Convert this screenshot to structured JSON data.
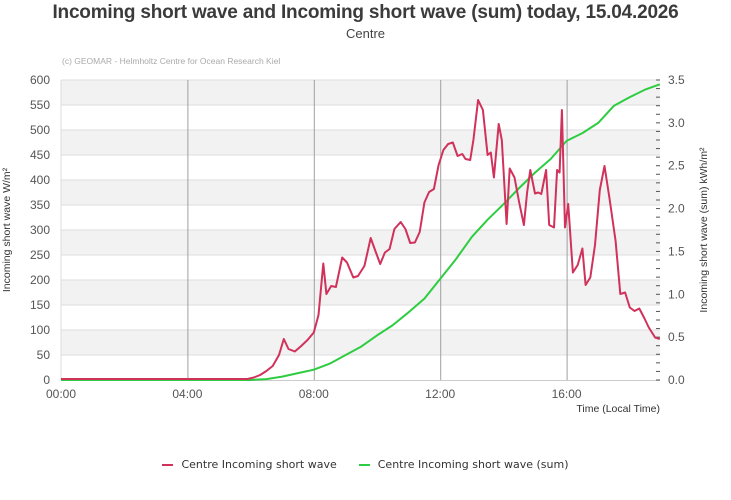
{
  "title": "Incoming short wave and Incoming short wave (sum) today, 15.04.2026",
  "subtitle": "Centre",
  "credit": "(c) GEOMAR - Helmholtz Centre for Ocean Research Kiel",
  "legend": [
    {
      "label": "Centre Incoming short wave",
      "color": "#d0325b"
    },
    {
      "label": "Centre Incoming short wave (sum)",
      "color": "#2ecc40"
    }
  ],
  "chart_data": {
    "type": "line",
    "title": "Incoming short wave and Incoming short wave (sum) today, 15.04.2026",
    "subtitle": "Centre",
    "xlabel": "Time (Local Time)",
    "ylabel": "Incoming short wave W/m²",
    "y2label": "Incoming short wave (sum) kWh/m²",
    "x_ticks": [
      "00:00",
      "04:00",
      "08:00",
      "12:00",
      "16:00"
    ],
    "y_ticks": [
      "0",
      "50",
      "100",
      "150",
      "200",
      "250",
      "300",
      "350",
      "400",
      "450",
      "500",
      "550",
      "600"
    ],
    "y2_ticks": [
      "0.0",
      "0.5",
      "1.0",
      "1.5",
      "2.0",
      "2.5",
      "3.0",
      "3.5"
    ],
    "xlim_hours": [
      0,
      19
    ],
    "ylim": [
      0,
      600
    ],
    "y2lim": [
      0,
      3.5
    ],
    "grid": true,
    "legend_position": "bottom",
    "series": [
      {
        "name": "Centre Incoming short wave",
        "axis": "left",
        "color": "#d0325b",
        "unit": "W/m²",
        "x_hours": [
          0,
          5.9,
          6.1,
          6.3,
          6.5,
          6.7,
          6.9,
          7.05,
          7.2,
          7.4,
          7.6,
          7.8,
          8.0,
          8.15,
          8.3,
          8.4,
          8.55,
          8.7,
          8.9,
          9.05,
          9.25,
          9.4,
          9.6,
          9.8,
          9.95,
          10.1,
          10.25,
          10.4,
          10.55,
          10.75,
          10.9,
          11.05,
          11.2,
          11.35,
          11.5,
          11.65,
          11.8,
          11.95,
          12.1,
          12.25,
          12.4,
          12.55,
          12.7,
          12.8,
          12.95,
          13.05,
          13.2,
          13.35,
          13.5,
          13.6,
          13.7,
          13.85,
          13.95,
          14.1,
          14.2,
          14.35,
          14.5,
          14.65,
          14.75,
          14.85,
          15.0,
          15.1,
          15.2,
          15.35,
          15.45,
          15.6,
          15.7,
          15.78,
          15.85,
          15.95,
          16.05,
          16.2,
          16.35,
          16.5,
          16.6,
          16.75,
          16.9,
          17.05,
          17.2,
          17.35,
          17.55,
          17.7,
          17.85,
          18.0,
          18.15,
          18.3,
          18.45,
          18.6,
          18.8,
          18.95
        ],
        "values": [
          2,
          2,
          5,
          10,
          18,
          28,
          50,
          82,
          62,
          57,
          68,
          80,
          95,
          130,
          233,
          172,
          188,
          186,
          245,
          235,
          205,
          208,
          228,
          284,
          258,
          232,
          255,
          262,
          302,
          316,
          302,
          274,
          275,
          296,
          355,
          376,
          382,
          430,
          460,
          472,
          475,
          448,
          452,
          442,
          440,
          480,
          560,
          540,
          450,
          455,
          405,
          512,
          480,
          312,
          423,
          405,
          355,
          310,
          375,
          420,
          373,
          375,
          372,
          420,
          310,
          305,
          420,
          415,
          540,
          305,
          352,
          215,
          230,
          263,
          190,
          205,
          270,
          380,
          428,
          366,
          278,
          172,
          175,
          145,
          138,
          143,
          125,
          105,
          85,
          82
        ]
      },
      {
        "name": "Centre Incoming short wave (sum)",
        "axis": "right",
        "color": "#2ecc40",
        "unit": "kWh/m²",
        "x_hours": [
          0,
          6.0,
          6.5,
          7.0,
          7.5,
          8.0,
          8.5,
          9.0,
          9.5,
          10.0,
          10.5,
          11.0,
          11.5,
          12.0,
          12.5,
          13.0,
          13.5,
          14.0,
          14.5,
          15.0,
          15.5,
          16.0,
          16.5,
          17.0,
          17.5,
          18.0,
          18.5,
          18.95
        ],
        "values": [
          0.0,
          0.0,
          0.01,
          0.04,
          0.08,
          0.12,
          0.19,
          0.29,
          0.39,
          0.52,
          0.64,
          0.79,
          0.95,
          1.18,
          1.41,
          1.67,
          1.87,
          2.05,
          2.24,
          2.42,
          2.58,
          2.79,
          2.88,
          3.0,
          3.2,
          3.3,
          3.39,
          3.45
        ]
      }
    ]
  }
}
